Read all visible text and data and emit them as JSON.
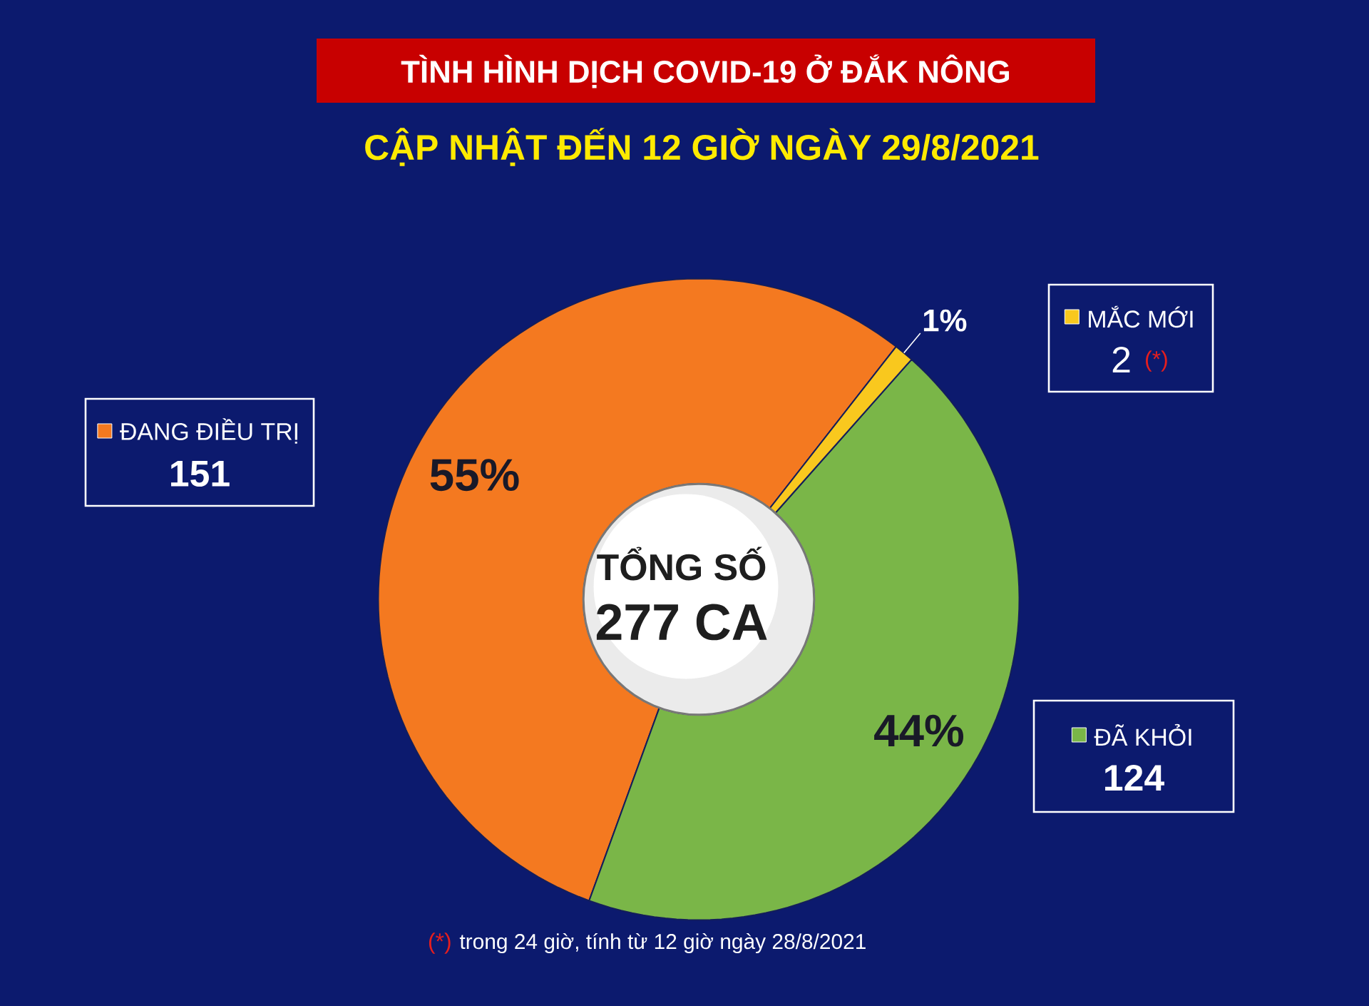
{
  "chart_data": {
    "type": "donut",
    "title": "TÌNH HÌNH DỊCH COVID-19 Ở ĐẮK NÔNG",
    "subtitle": "CẬP NHẬT ĐẾN 12 GIỜ NGÀY 29/8/2021",
    "categories": [
      "ĐANG ĐIỀU TRỊ",
      "ĐÃ KHỎI",
      "MẮC MỚI"
    ],
    "values": [
      55,
      44,
      1
    ],
    "value_labels": [
      "55%",
      "44%",
      "1%"
    ],
    "colors": [
      "#f47920",
      "#7ab648",
      "#f9c81e"
    ],
    "legend": "top left",
    "annotations": [
      "TỔNG SỐ",
      "277 CA",
      "(*)",
      "(*)",
      "trong 24 giờ, tính từ 12 giờ ngày 28/8/2021",
      "151",
      "124",
      "2"
    ]
  }
}
